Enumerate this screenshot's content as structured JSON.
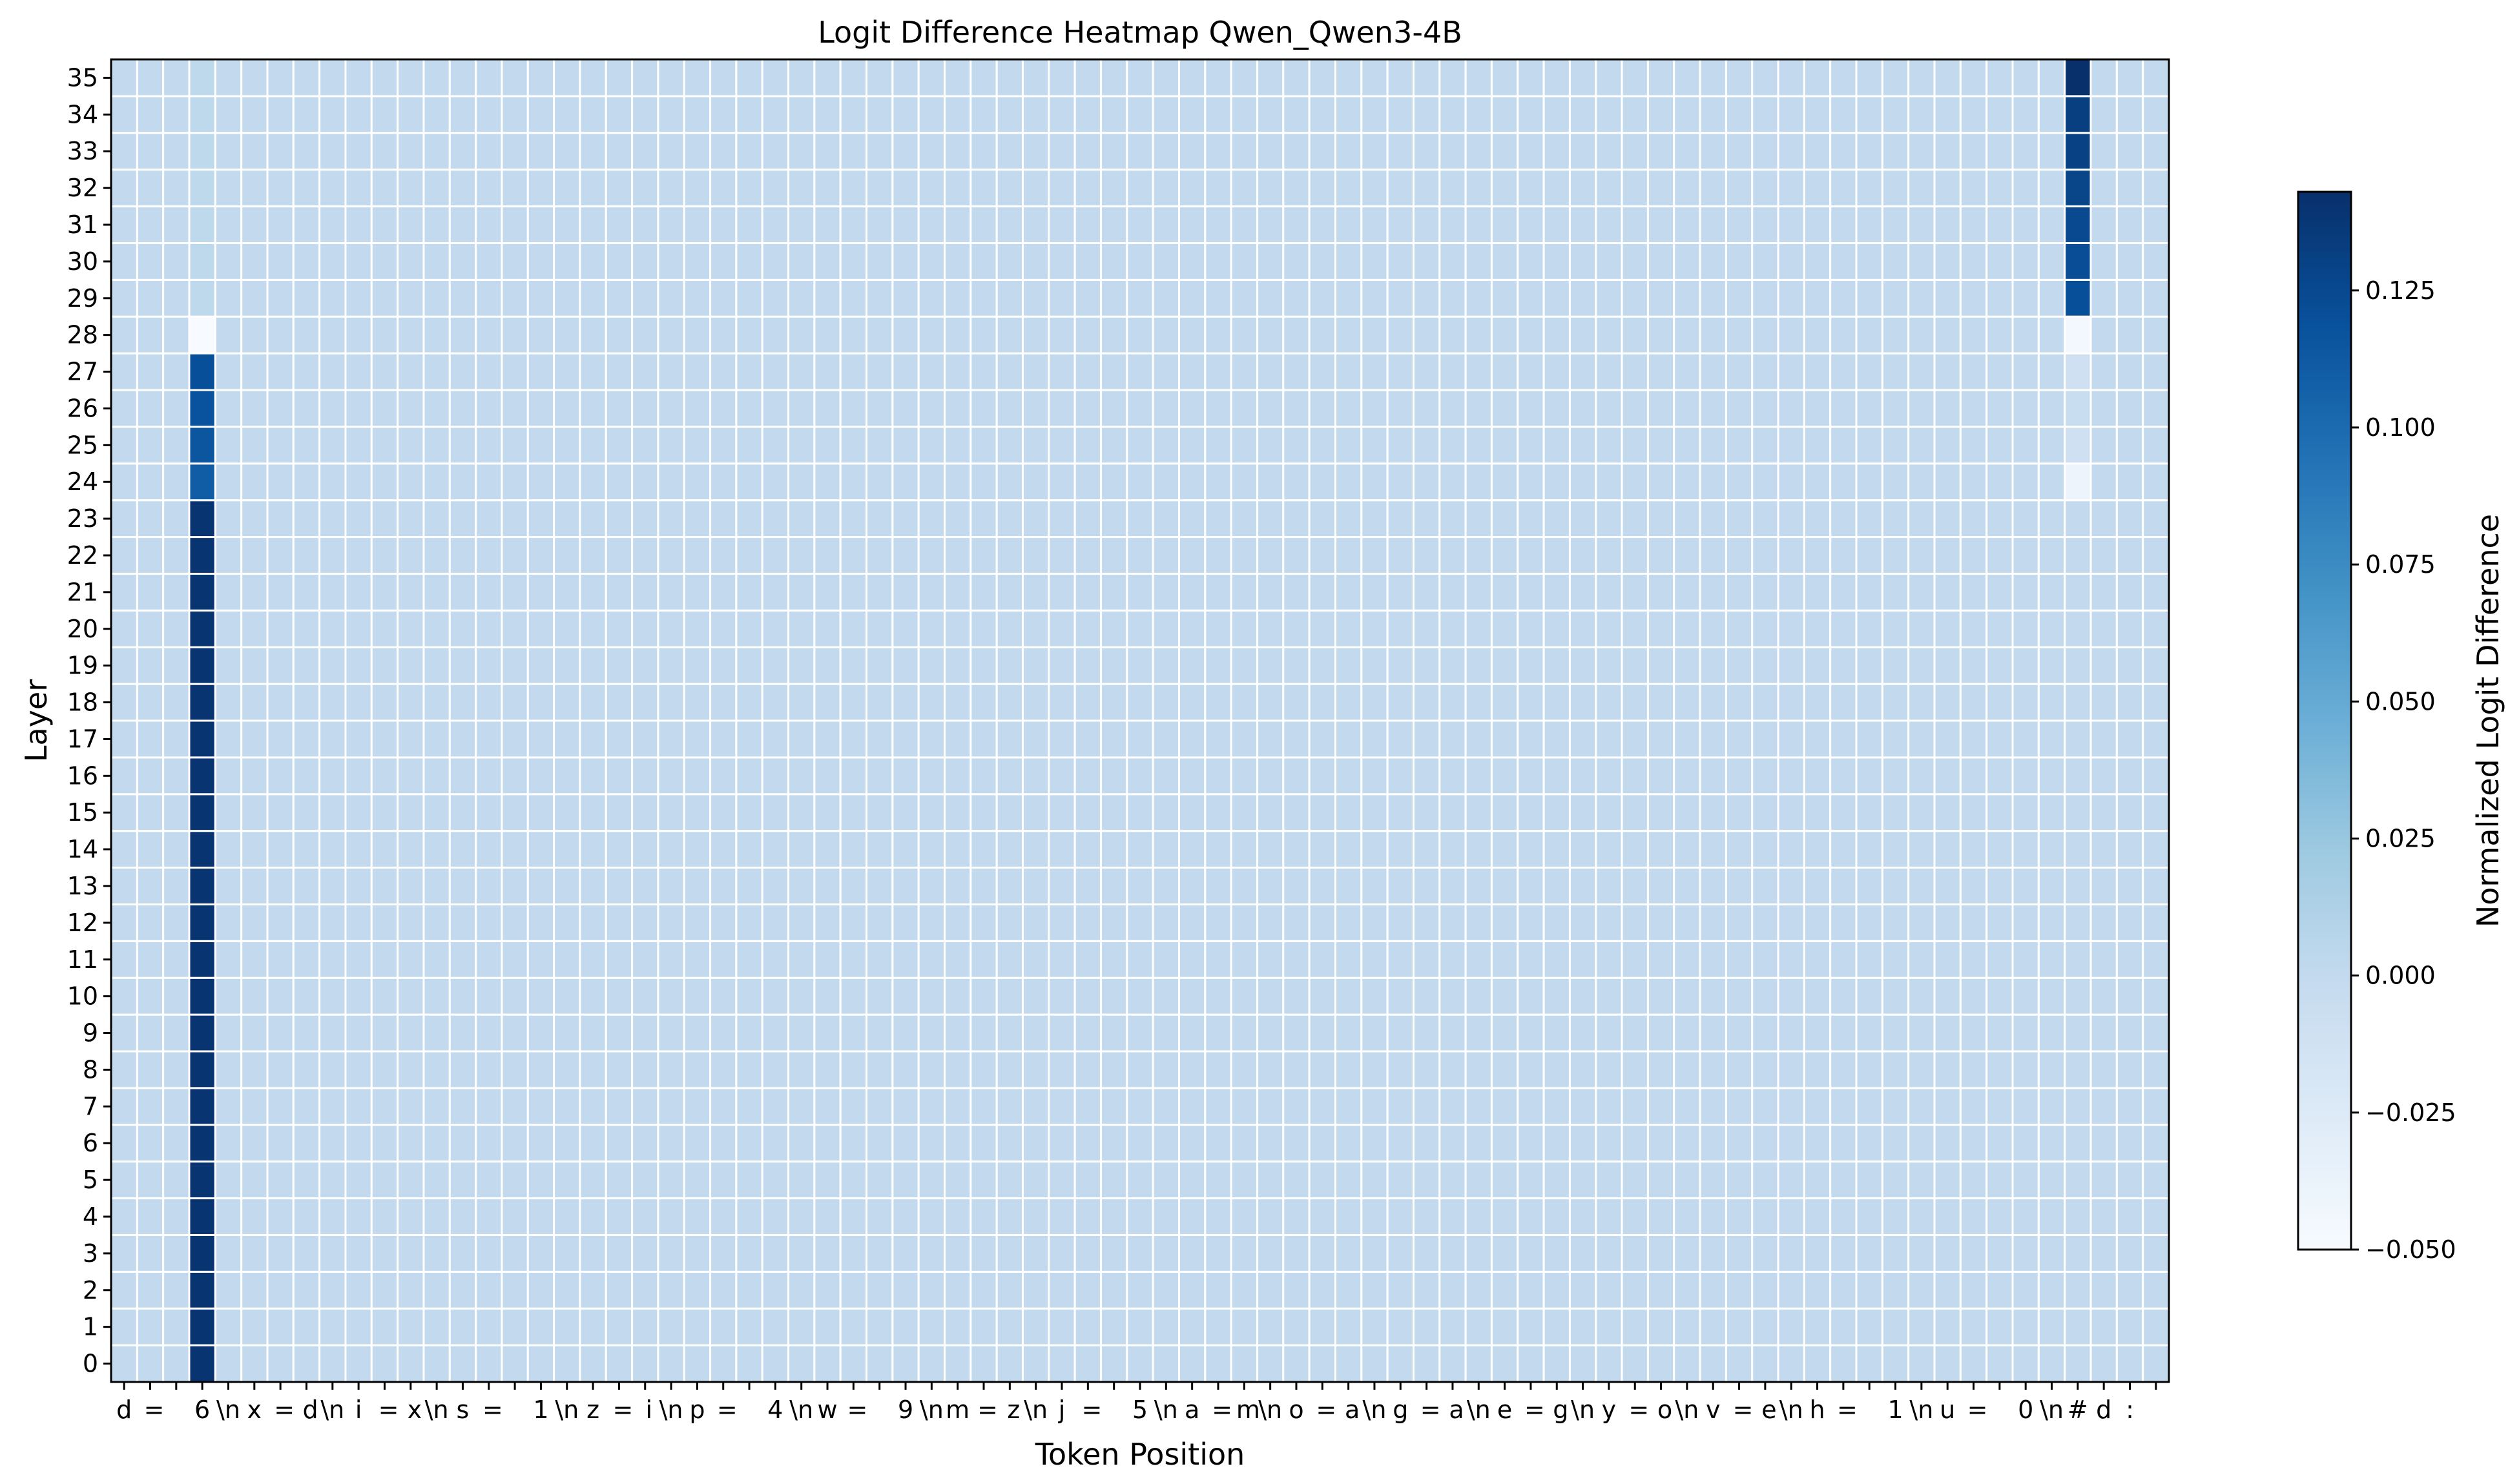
{
  "chart_data": {
    "type": "heatmap",
    "title": "Logit Difference Heatmap Qwen_Qwen3-4B",
    "xlabel": "Token Position",
    "ylabel": "Layer",
    "x_tokens": [
      "d",
      " =",
      " ",
      "6",
      "\\n",
      "x",
      " =",
      " d",
      "\\n",
      "i",
      " =",
      " x",
      "\\n",
      "s",
      " =",
      " ",
      "1",
      "\\n",
      "z",
      " =",
      " i",
      "\\n",
      "p",
      " =",
      " ",
      "4",
      "\\n",
      "w",
      " =",
      " ",
      "9",
      "\\n",
      "m",
      " =",
      " z",
      "\\n",
      "j",
      " =",
      " ",
      "5",
      "\\n",
      "a",
      " =",
      " m",
      "\\n",
      "o",
      " =",
      " a",
      "\\n",
      "g",
      " =",
      " a",
      "\\n",
      "e",
      " =",
      " g",
      "\\n",
      "y",
      " =",
      " o",
      "\\n",
      "v",
      " =",
      " e",
      "\\n",
      "h",
      " =",
      " ",
      "1",
      "\\n",
      "u",
      " =",
      " ",
      "0",
      "\\n",
      "#",
      "d",
      ":",
      " "
    ],
    "y_ticks": [
      "0",
      "1",
      "2",
      "3",
      "4",
      "5",
      "6",
      "7",
      "8",
      "9",
      "10",
      "11",
      "12",
      "13",
      "14",
      "15",
      "16",
      "17",
      "18",
      "19",
      "20",
      "21",
      "22",
      "23",
      "24",
      "25",
      "26",
      "27",
      "28",
      "29",
      "30",
      "31",
      "32",
      "33",
      "34",
      "35"
    ],
    "background_value": 0.0,
    "highlight_columns": [
      {
        "token_index": 3,
        "token": "6",
        "values_by_layer": [
          0.14,
          0.14,
          0.14,
          0.14,
          0.14,
          0.14,
          0.14,
          0.14,
          0.14,
          0.14,
          0.14,
          0.14,
          0.14,
          0.14,
          0.14,
          0.14,
          0.14,
          0.14,
          0.14,
          0.14,
          0.14,
          0.14,
          0.14,
          0.14,
          0.11,
          0.115,
          0.118,
          0.12,
          -0.05,
          0.003,
          0.003,
          0.003,
          0.003,
          0.003,
          0.003,
          0.003
        ]
      },
      {
        "token_index": 75,
        "token": " ",
        "values_by_layer": [
          0.0,
          0.0,
          0.0,
          0.0,
          0.0,
          0.0,
          0.0,
          0.0,
          0.0,
          0.0,
          0.0,
          0.0,
          0.0,
          0.0,
          0.0,
          0.0,
          0.0,
          0.0,
          0.0,
          0.0,
          0.0,
          0.0,
          0.0,
          0.0,
          -0.04,
          -0.01,
          -0.005,
          -0.01,
          -0.045,
          0.12,
          0.122,
          0.125,
          0.128,
          0.13,
          0.132,
          0.143
        ]
      }
    ],
    "colorbar": {
      "label": "Normalized Logit Difference",
      "range": [
        -0.05,
        0.143
      ],
      "ticks": [
        -0.05,
        -0.025,
        0.0,
        0.025,
        0.05,
        0.075,
        0.1,
        0.125
      ],
      "tick_labels": [
        "−0.050",
        "−0.025",
        "0.000",
        "0.025",
        "0.050",
        "0.075",
        "0.100",
        "0.125"
      ],
      "colormap": "Blues"
    }
  }
}
